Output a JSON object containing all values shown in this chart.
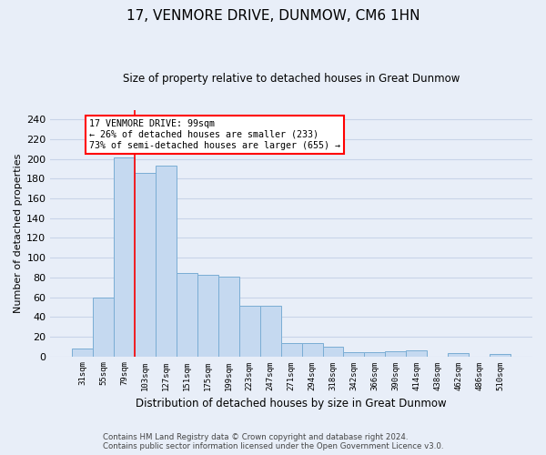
{
  "title": "17, VENMORE DRIVE, DUNMOW, CM6 1HN",
  "subtitle": "Size of property relative to detached houses in Great Dunmow",
  "xlabel": "Distribution of detached houses by size in Great Dunmow",
  "ylabel": "Number of detached properties",
  "footer_line1": "Contains HM Land Registry data © Crown copyright and database right 2024.",
  "footer_line2": "Contains public sector information licensed under the Open Government Licence v3.0.",
  "categories": [
    "31sqm",
    "55sqm",
    "79sqm",
    "103sqm",
    "127sqm",
    "151sqm",
    "175sqm",
    "199sqm",
    "223sqm",
    "247sqm",
    "271sqm",
    "294sqm",
    "318sqm",
    "342sqm",
    "366sqm",
    "390sqm",
    "414sqm",
    "438sqm",
    "462sqm",
    "486sqm",
    "510sqm"
  ],
  "values": [
    8,
    60,
    202,
    186,
    193,
    84,
    83,
    81,
    51,
    51,
    13,
    13,
    10,
    4,
    4,
    5,
    6,
    0,
    3,
    0,
    2
  ],
  "bar_color": "#c5d9f0",
  "bar_edge_color": "#7aadd4",
  "grid_color": "#c8d4e8",
  "background_color": "#e8eef8",
  "annotation_text_line1": "17 VENMORE DRIVE: 99sqm",
  "annotation_text_line2": "← 26% of detached houses are smaller (233)",
  "annotation_text_line3": "73% of semi-detached houses are larger (655) →",
  "annotation_box_color": "white",
  "annotation_box_edge": "red",
  "red_line_color": "red",
  "red_line_x": 2.5,
  "ylim": [
    0,
    250
  ],
  "yticks": [
    0,
    20,
    40,
    60,
    80,
    100,
    120,
    140,
    160,
    180,
    200,
    220,
    240
  ]
}
